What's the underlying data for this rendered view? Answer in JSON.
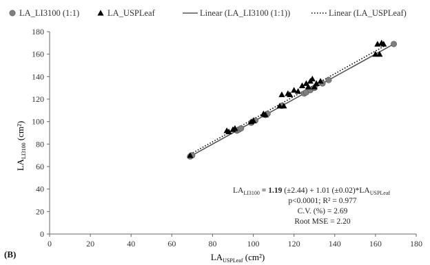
{
  "chart_data": {
    "type": "scatter",
    "panel_label": "(B)",
    "xlabel": {
      "main": "LA",
      "sub": "USPLeaf",
      "unit": " (cm²)"
    },
    "ylabel": {
      "main": "LA",
      "sub": "LI3100",
      "unit": " (cm²)"
    },
    "xlim": [
      0,
      180
    ],
    "ylim": [
      0,
      180
    ],
    "xticks": [
      0,
      20,
      40,
      60,
      80,
      100,
      120,
      140,
      160,
      180
    ],
    "yticks": [
      0,
      20,
      40,
      60,
      80,
      100,
      120,
      140,
      160,
      180
    ],
    "grid": false,
    "legend_position": "top",
    "series": [
      {
        "name": "LA_LI3100 (1:1)",
        "marker": "circle",
        "color": "#7f7f7f",
        "x": [
          69,
          70,
          92,
          93,
          94,
          99,
          101,
          106,
          107,
          114,
          125,
          126,
          128,
          130,
          134,
          137,
          169
        ],
        "y": [
          69,
          70,
          92,
          93,
          94,
          99,
          101,
          106,
          107,
          114,
          125,
          126,
          128,
          130,
          134,
          137,
          169
        ]
      },
      {
        "name": "LA_USPLeaf",
        "marker": "triangle",
        "color": "#000000",
        "x": [
          69,
          87,
          88,
          90,
          91,
          99,
          100,
          105,
          106,
          113,
          114,
          115,
          117,
          118,
          120,
          122,
          124,
          126,
          127,
          128,
          129,
          130,
          131,
          133,
          160,
          161,
          162,
          163,
          164
        ],
        "y": [
          70,
          92,
          91,
          93,
          94,
          100,
          101,
          107,
          106,
          114,
          124,
          114,
          125,
          124,
          128,
          127,
          132,
          134,
          131,
          136,
          138,
          131,
          134,
          136,
          160,
          169,
          160,
          170,
          169
        ]
      },
      {
        "name": "Linear (LA_LI3100 (1:1))",
        "line_style": "solid",
        "color": "#555555",
        "slope": 1.0,
        "intercept": 0.0,
        "x_range": [
          69,
          169
        ]
      },
      {
        "name": "Linear (LA_USPLeaf)",
        "line_style": "dotted",
        "color": "#000000",
        "slope": 1.01,
        "intercept": 1.19,
        "x_range": [
          68,
          165
        ]
      }
    ],
    "annotation": {
      "eq_left": "LA",
      "eq_left_sub": "LI3100",
      "eq_bold": " = 1.19",
      "eq_mid": " (±2.44) + 1.01 (±0.02)*LA",
      "eq_right_sub": "USPLeaf",
      "line2": "p<0.0001; R² = 0.977",
      "line3": "C.V. (%) = 2.69",
      "line4": "Root MSE = 2.20"
    }
  }
}
